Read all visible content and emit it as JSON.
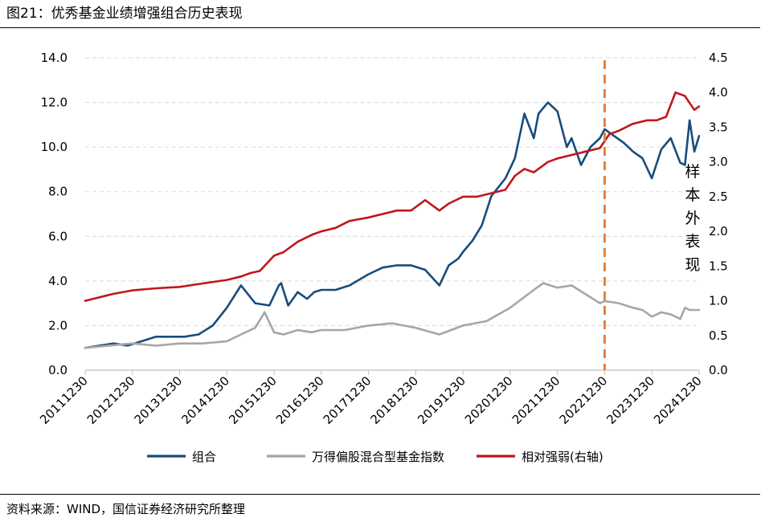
{
  "title": "图21：优秀基金业绩增强组合历史表现",
  "source": "资料来源：WIND，国信证券经济研究所整理",
  "chart_data": {
    "type": "line",
    "x_ticks": [
      "20111230",
      "20121230",
      "20131230",
      "20141230",
      "20151230",
      "20161230",
      "20171230",
      "20181230",
      "20191230",
      "20201230",
      "20211230",
      "20221230",
      "20231230",
      "20241230"
    ],
    "left_axis": {
      "ticks": [
        "0.0",
        "2.0",
        "4.0",
        "6.0",
        "8.0",
        "10.0",
        "12.0",
        "14.0"
      ],
      "ylim": [
        0,
        14
      ]
    },
    "right_axis": {
      "ticks": [
        "0.0",
        "0.5",
        "1.0",
        "1.5",
        "2.0",
        "2.5",
        "3.0",
        "3.5",
        "4.0",
        "4.5"
      ],
      "ylim": [
        0,
        4.5
      ]
    },
    "grid": true,
    "legend_position": "bottom",
    "divider": {
      "x": 11.0,
      "color": "#E8823A",
      "label": [
        "样",
        "本",
        "外",
        "表",
        "现"
      ]
    },
    "series": [
      {
        "name": "组合",
        "axis": "left",
        "color": "#174C7C",
        "x": [
          0,
          0.3,
          0.6,
          0.9,
          1.2,
          1.5,
          1.8,
          2.1,
          2.4,
          2.7,
          3.0,
          3.3,
          3.6,
          3.9,
          4.1,
          4.15,
          4.3,
          4.5,
          4.7,
          4.85,
          5.0,
          5.3,
          5.6,
          6.0,
          6.3,
          6.6,
          6.9,
          7.2,
          7.5,
          7.7,
          7.9,
          8.0,
          8.2,
          8.4,
          8.6,
          8.9,
          9.1,
          9.3,
          9.5,
          9.6,
          9.8,
          10.0,
          10.2,
          10.3,
          10.5,
          10.7,
          10.9,
          11.0,
          11.2,
          11.4,
          11.6,
          11.8,
          12.0,
          12.2,
          12.4,
          12.6,
          12.7,
          12.8,
          12.9,
          13.0
        ],
        "y": [
          1.0,
          1.1,
          1.2,
          1.1,
          1.3,
          1.5,
          1.5,
          1.5,
          1.6,
          2.0,
          2.8,
          3.8,
          3.0,
          2.9,
          3.8,
          3.9,
          2.9,
          3.5,
          3.2,
          3.5,
          3.6,
          3.6,
          3.8,
          4.3,
          4.6,
          4.7,
          4.7,
          4.5,
          3.8,
          4.7,
          5.0,
          5.3,
          5.8,
          6.5,
          7.8,
          8.6,
          9.5,
          11.5,
          10.4,
          11.5,
          12.0,
          11.6,
          10.0,
          10.4,
          9.2,
          10.0,
          10.4,
          10.8,
          10.5,
          10.2,
          9.8,
          9.5,
          8.6,
          9.9,
          10.4,
          9.3,
          9.2,
          11.2,
          9.8,
          10.5
        ]
      },
      {
        "name": "万得偏股混合型基金指数",
        "axis": "left",
        "color": "#A6A6A6",
        "x": [
          0,
          0.5,
          1.0,
          1.5,
          2.0,
          2.5,
          3.0,
          3.3,
          3.6,
          3.8,
          4.0,
          4.2,
          4.5,
          4.8,
          5.0,
          5.5,
          6.0,
          6.5,
          7.0,
          7.5,
          8.0,
          8.5,
          9.0,
          9.5,
          9.7,
          10.0,
          10.3,
          10.6,
          10.9,
          11.0,
          11.3,
          11.6,
          11.8,
          12.0,
          12.2,
          12.4,
          12.6,
          12.7,
          12.8,
          13.0
        ],
        "y": [
          1.0,
          1.1,
          1.2,
          1.1,
          1.2,
          1.2,
          1.3,
          1.6,
          1.9,
          2.6,
          1.7,
          1.6,
          1.8,
          1.7,
          1.8,
          1.8,
          2.0,
          2.1,
          1.9,
          1.6,
          2.0,
          2.2,
          2.8,
          3.6,
          3.9,
          3.7,
          3.8,
          3.4,
          3.0,
          3.1,
          3.0,
          2.8,
          2.7,
          2.4,
          2.6,
          2.5,
          2.3,
          2.8,
          2.7,
          2.7
        ]
      },
      {
        "name": "相对强弱(右轴)",
        "axis": "right",
        "color": "#C0161E",
        "x": [
          0,
          0.3,
          0.6,
          1.0,
          1.5,
          2.0,
          2.5,
          3.0,
          3.3,
          3.5,
          3.7,
          4.0,
          4.2,
          4.5,
          4.8,
          5.0,
          5.3,
          5.6,
          6.0,
          6.3,
          6.6,
          6.9,
          7.2,
          7.5,
          7.7,
          8.0,
          8.3,
          8.6,
          8.9,
          9.1,
          9.3,
          9.5,
          9.8,
          10.0,
          10.3,
          10.6,
          10.9,
          11.1,
          11.3,
          11.6,
          11.9,
          12.1,
          12.3,
          12.5,
          12.7,
          12.8,
          12.9,
          13.0
        ],
        "y": [
          1.0,
          1.05,
          1.1,
          1.15,
          1.18,
          1.2,
          1.25,
          1.3,
          1.35,
          1.4,
          1.43,
          1.65,
          1.7,
          1.85,
          1.95,
          2.0,
          2.05,
          2.15,
          2.2,
          2.25,
          2.3,
          2.3,
          2.45,
          2.3,
          2.4,
          2.5,
          2.5,
          2.55,
          2.6,
          2.8,
          2.9,
          2.85,
          3.0,
          3.05,
          3.1,
          3.15,
          3.2,
          3.4,
          3.45,
          3.55,
          3.6,
          3.6,
          3.65,
          4.0,
          3.95,
          3.85,
          3.75,
          3.8
        ]
      }
    ]
  }
}
